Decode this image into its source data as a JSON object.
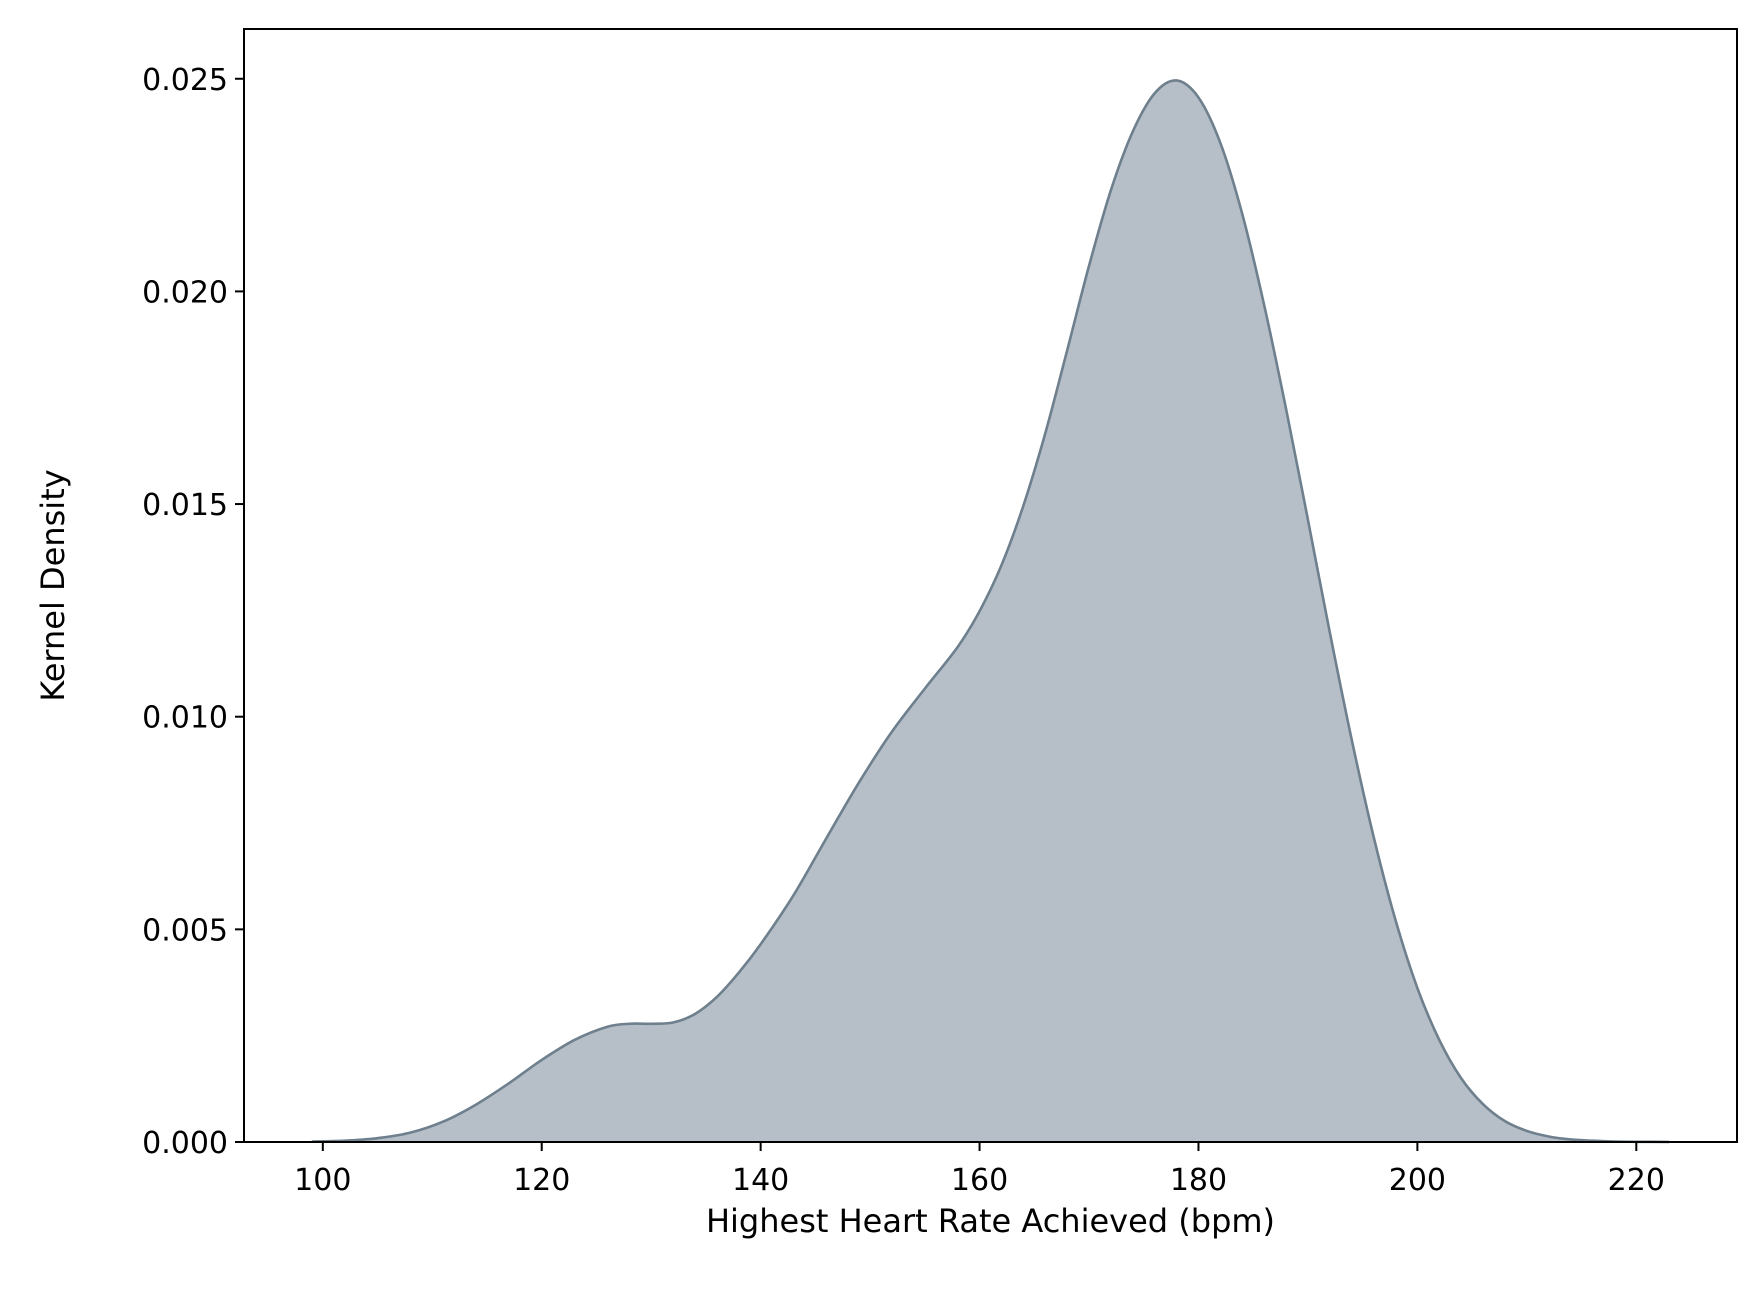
{
  "chart_data": {
    "type": "area",
    "title": "",
    "xlabel": "Highest Heart Rate Achieved (bpm)",
    "ylabel": "Kernel Density",
    "xlim": [
      92.8,
      229.2
    ],
    "ylim": [
      0,
      0.02617
    ],
    "xticks": [
      100,
      120,
      140,
      160,
      180,
      200,
      220
    ],
    "xtick_labels": [
      "100",
      "120",
      "140",
      "160",
      "180",
      "200",
      "220"
    ],
    "yticks": [
      0.0,
      0.005,
      0.01,
      0.015,
      0.02,
      0.025
    ],
    "ytick_labels": [
      "0.000",
      "0.005",
      "0.010",
      "0.015",
      "0.020",
      "0.025"
    ],
    "grid": false,
    "legend": false,
    "series": [
      {
        "color": "#6e7f8d",
        "fill": "#b6bfc7",
        "x": [
          99,
          102,
          105,
          108,
          111,
          114,
          117,
          120,
          123,
          126,
          128,
          130,
          132,
          134,
          136,
          138,
          140,
          143,
          146,
          149,
          152,
          155,
          158,
          160,
          162,
          164,
          166,
          168,
          170,
          172,
          174,
          176,
          178,
          180,
          182,
          184,
          186,
          188,
          190,
          192,
          194,
          196,
          198,
          200,
          202,
          204,
          206,
          208,
          210,
          212,
          214,
          216,
          218,
          220,
          223
        ],
        "y": [
          1e-05,
          3e-05,
          9e-05,
          0.00022,
          0.00048,
          0.00088,
          0.00138,
          0.00193,
          0.0024,
          0.00271,
          0.00278,
          0.00278,
          0.00281,
          0.00301,
          0.00341,
          0.00398,
          0.00465,
          0.0058,
          0.00714,
          0.00846,
          0.00965,
          0.01066,
          0.01164,
          0.01248,
          0.01356,
          0.01496,
          0.01666,
          0.01861,
          0.0206,
          0.02238,
          0.02376,
          0.02466,
          0.02496,
          0.02456,
          0.02349,
          0.02182,
          0.01968,
          0.01724,
          0.01463,
          0.01198,
          0.00946,
          0.00718,
          0.00522,
          0.00362,
          0.0024,
          0.0015,
          0.00089,
          0.00049,
          0.00026,
          0.00013,
          6e-05,
          3e-05,
          1e-05,
          5e-06,
          2e-06
        ]
      }
    ]
  }
}
